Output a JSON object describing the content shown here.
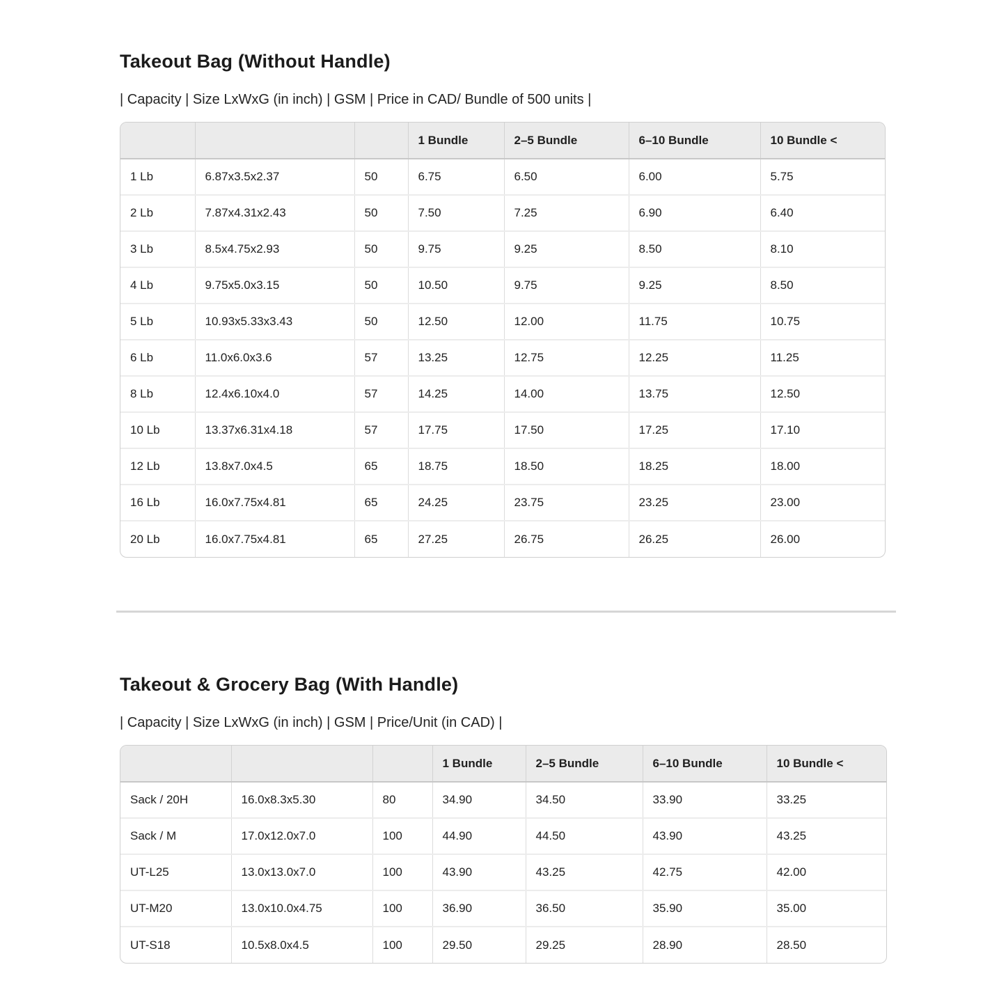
{
  "colors": {
    "table_header_bg": "#ebebeb",
    "table_border_outer": "#cfcfcf",
    "text": "#212121"
  },
  "sections": [
    {
      "title": "Takeout Bag (Without Handle)",
      "subtitle": "| Capacity | Size LxWxG (in inch) | GSM | Price in CAD/ Bundle of 500 units |",
      "table": {
        "headers": [
          "",
          "",
          "",
          "1 Bundle",
          "2–5 Bundle",
          "6–10 Bundle",
          "10 Bundle <"
        ],
        "rows": [
          [
            "1 Lb",
            "6.87x3.5x2.37",
            "50",
            "6.75",
            "6.50",
            "6.00",
            "5.75"
          ],
          [
            "2 Lb",
            "7.87x4.31x2.43",
            "50",
            "7.50",
            "7.25",
            "6.90",
            "6.40"
          ],
          [
            "3 Lb",
            "8.5x4.75x2.93",
            "50",
            "9.75",
            "9.25",
            "8.50",
            "8.10"
          ],
          [
            "4 Lb",
            "9.75x5.0x3.15",
            "50",
            "10.50",
            "9.75",
            "9.25",
            "8.50"
          ],
          [
            "5 Lb",
            "10.93x5.33x3.43",
            "50",
            "12.50",
            "12.00",
            "11.75",
            "10.75"
          ],
          [
            "6 Lb",
            "11.0x6.0x3.6",
            "57",
            "13.25",
            "12.75",
            "12.25",
            "11.25"
          ],
          [
            "8 Lb",
            "12.4x6.10x4.0",
            "57",
            "14.25",
            "14.00",
            "13.75",
            "12.50"
          ],
          [
            "10 Lb",
            "13.37x6.31x4.18",
            "57",
            "17.75",
            "17.50",
            "17.25",
            "17.10"
          ],
          [
            "12 Lb",
            "13.8x7.0x4.5",
            "65",
            "18.75",
            "18.50",
            "18.25",
            "18.00"
          ],
          [
            "16 Lb",
            "16.0x7.75x4.81",
            "65",
            "24.25",
            "23.75",
            "23.25",
            "23.00"
          ],
          [
            "20 Lb",
            "16.0x7.75x4.81",
            "65",
            "27.25",
            "26.75",
            "26.25",
            "26.00"
          ]
        ]
      }
    },
    {
      "title": "Takeout & Grocery Bag (With Handle)",
      "subtitle": "| Capacity | Size LxWxG (in inch) | GSM | Price/Unit (in CAD) |",
      "table": {
        "headers": [
          "",
          "",
          "",
          "1 Bundle",
          "2–5 Bundle",
          "6–10 Bundle",
          "10 Bundle <"
        ],
        "rows": [
          [
            "Sack / 20H",
            "16.0x8.3x5.30",
            "80",
            "34.90",
            "34.50",
            "33.90",
            "33.25"
          ],
          [
            "Sack / M",
            "17.0x12.0x7.0",
            "100",
            "44.90",
            "44.50",
            "43.90",
            "43.25"
          ],
          [
            "UT-L25",
            "13.0x13.0x7.0",
            "100",
            "43.90",
            "43.25",
            "42.75",
            "42.00"
          ],
          [
            "UT-M20",
            "13.0x10.0x4.75",
            "100",
            "36.90",
            "36.50",
            "35.90",
            "35.00"
          ],
          [
            "UT-S18",
            "10.5x8.0x4.5",
            "100",
            "29.50",
            "29.25",
            "28.90",
            "28.50"
          ]
        ]
      }
    }
  ]
}
